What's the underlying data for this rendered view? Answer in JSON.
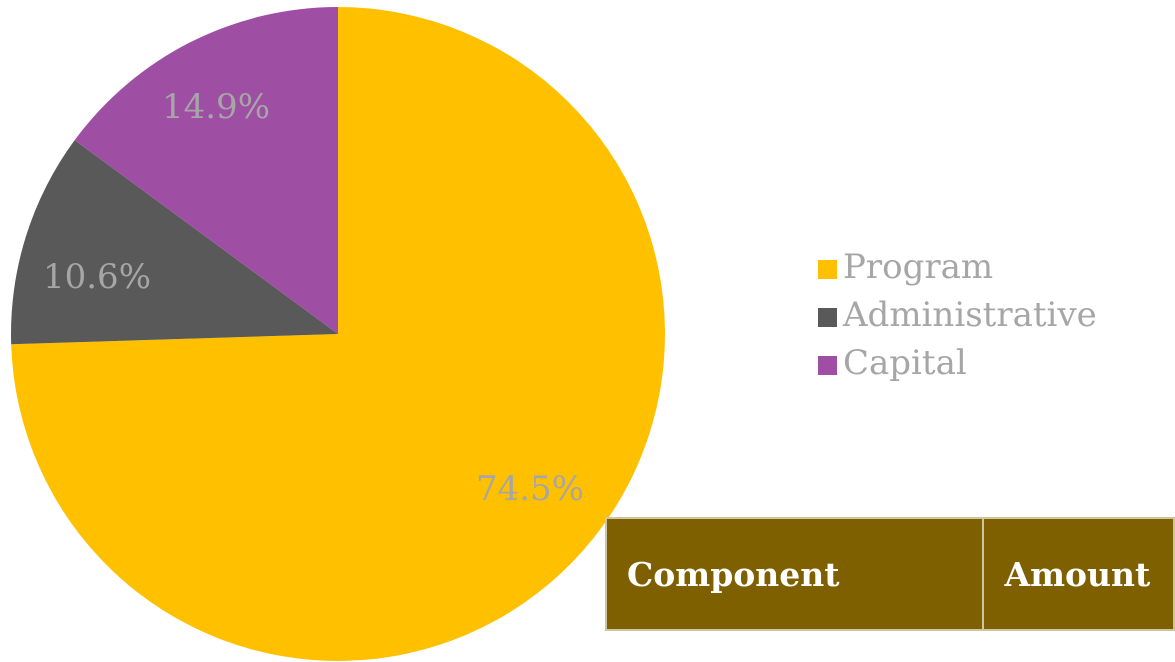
{
  "chart_data": {
    "type": "pie",
    "title": "",
    "categories": [
      "Program",
      "Administrative",
      "Capital"
    ],
    "values": [
      74.5,
      10.6,
      14.9
    ],
    "labels": [
      "74.5%",
      "10.6%",
      "14.9%"
    ],
    "colors": [
      "#ffc000",
      "#595959",
      "#9e4fa4"
    ],
    "start": "12 o'clock",
    "direction": "clockwise",
    "legend_position": "right"
  },
  "legend": {
    "items": [
      {
        "label": "Program",
        "color": "#ffc000"
      },
      {
        "label": "Administrative",
        "color": "#595959"
      },
      {
        "label": "Capital",
        "color": "#9e4fa4"
      }
    ]
  },
  "table": {
    "headers": [
      "Component",
      "Amount"
    ],
    "header_bg": "#7f6000"
  }
}
